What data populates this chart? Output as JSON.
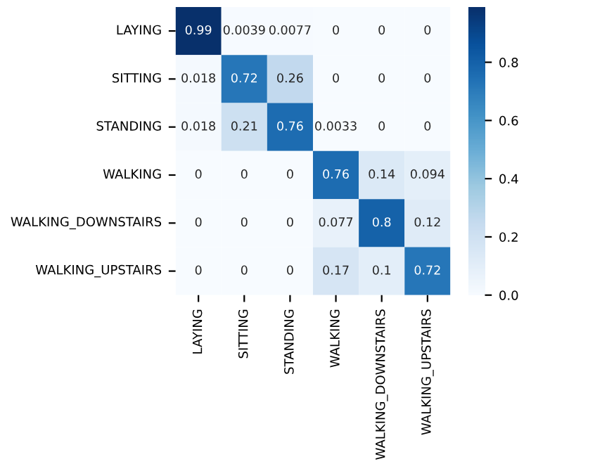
{
  "chart_data": {
    "type": "heatmap",
    "categories": [
      "LAYING",
      "SITTING",
      "STANDING",
      "WALKING",
      "WALKING_DOWNSTAIRS",
      "WALKING_UPSTAIRS"
    ],
    "y_categories": [
      "LAYING",
      "SITTING",
      "STANDING",
      "WALKING",
      "WALKING_DOWNSTAIRS",
      "WALKING_UPSTAIRS"
    ],
    "cells": [
      [
        0.99,
        0.0039,
        0.0077,
        0,
        0,
        0
      ],
      [
        0.018,
        0.72,
        0.26,
        0,
        0,
        0
      ],
      [
        0.018,
        0.21,
        0.76,
        0.0033,
        0,
        0
      ],
      [
        0,
        0,
        0,
        0.76,
        0.14,
        0.094
      ],
      [
        0,
        0,
        0,
        0.077,
        0.8,
        0.12
      ],
      [
        0,
        0,
        0,
        0.17,
        0.1,
        0.72
      ]
    ],
    "data_labels": true,
    "clim": [
      0,
      0.99
    ],
    "cticks": [
      {
        "value": 0,
        "label": "0.0"
      },
      {
        "value": 0.2,
        "label": "0.2"
      },
      {
        "value": 0.4,
        "label": "0.4"
      },
      {
        "value": 0.6,
        "label": "0.6"
      },
      {
        "value": 0.8,
        "label": "0.8"
      }
    ]
  }
}
